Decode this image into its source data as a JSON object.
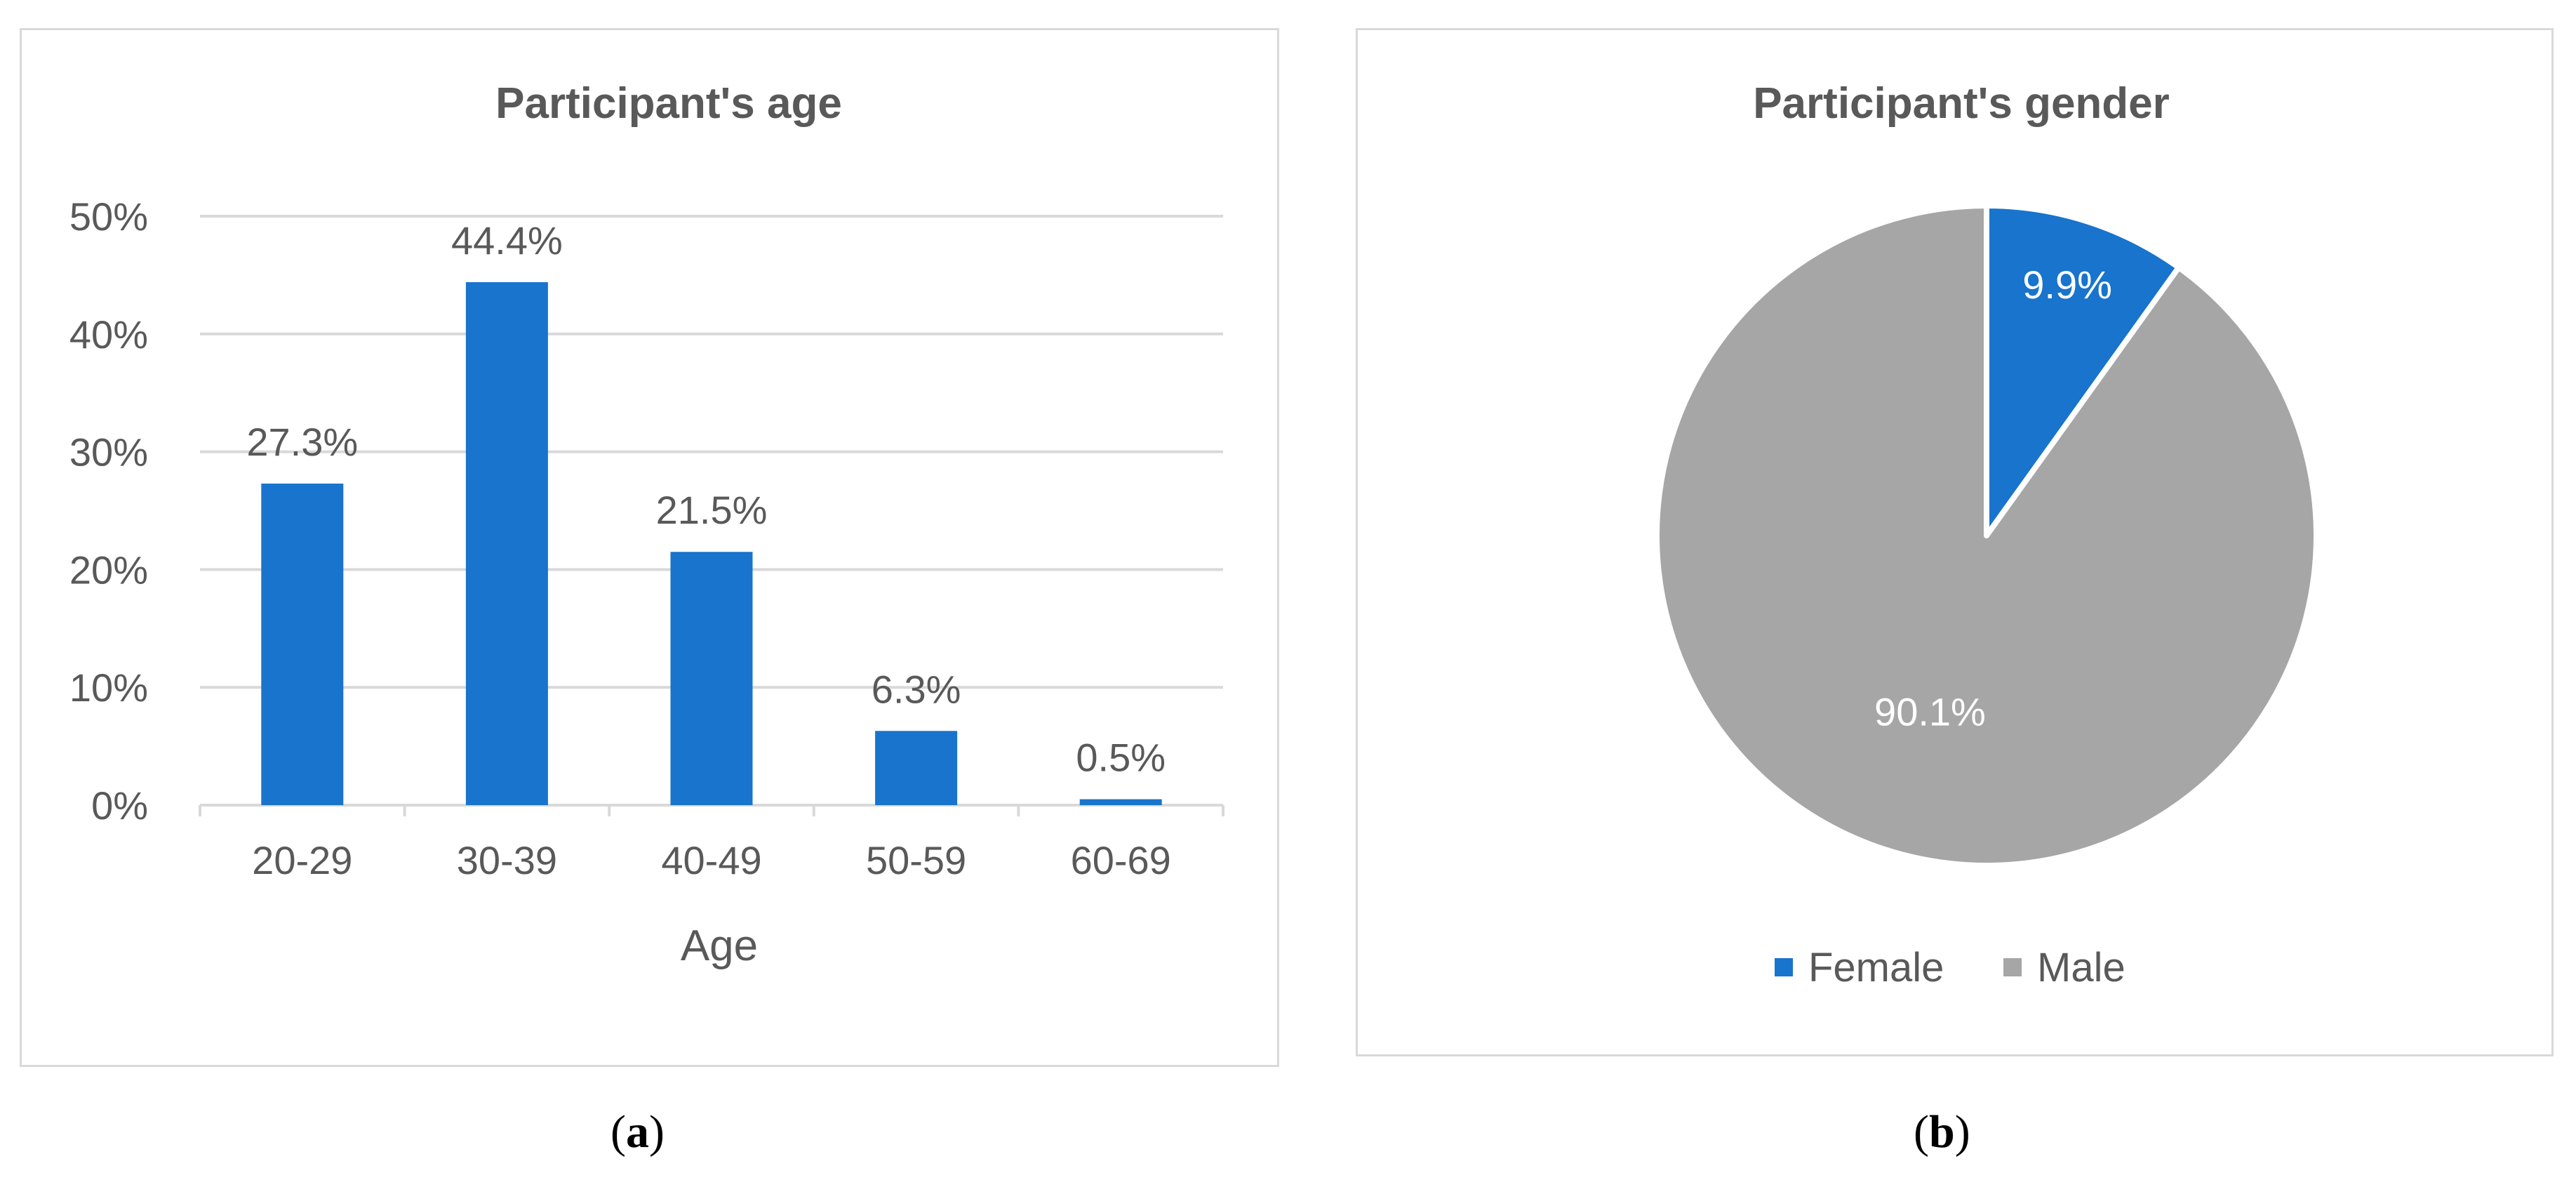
{
  "chart_data": [
    {
      "type": "bar",
      "title": "Participant's age",
      "xlabel": "Age",
      "ylabel": "",
      "categories": [
        "20-29",
        "30-39",
        "40-49",
        "50-59",
        "60-69"
      ],
      "values": [
        27.3,
        44.4,
        21.5,
        6.3,
        0.5
      ],
      "data_labels": [
        "27.3%",
        "44.4%",
        "21.5%",
        "6.3%",
        "0.5%"
      ],
      "yticks": [
        "0%",
        "10%",
        "20%",
        "30%",
        "40%",
        "50%"
      ],
      "ylim": [
        0,
        50
      ],
      "grid": true,
      "color": "#1874CD"
    },
    {
      "type": "pie",
      "title": "Participant's gender",
      "labels": [
        "Female",
        "Male"
      ],
      "values": [
        9.9,
        90.1
      ],
      "data_labels": [
        "9.9%",
        "90.1%"
      ],
      "colors": [
        "#1874CD",
        "#A6A6A6"
      ],
      "legend": "bottom"
    }
  ],
  "captions": {
    "a": {
      "open": "(",
      "letter": "a",
      "close": ")"
    },
    "b": {
      "open": "(",
      "letter": "b",
      "close": ")"
    }
  }
}
